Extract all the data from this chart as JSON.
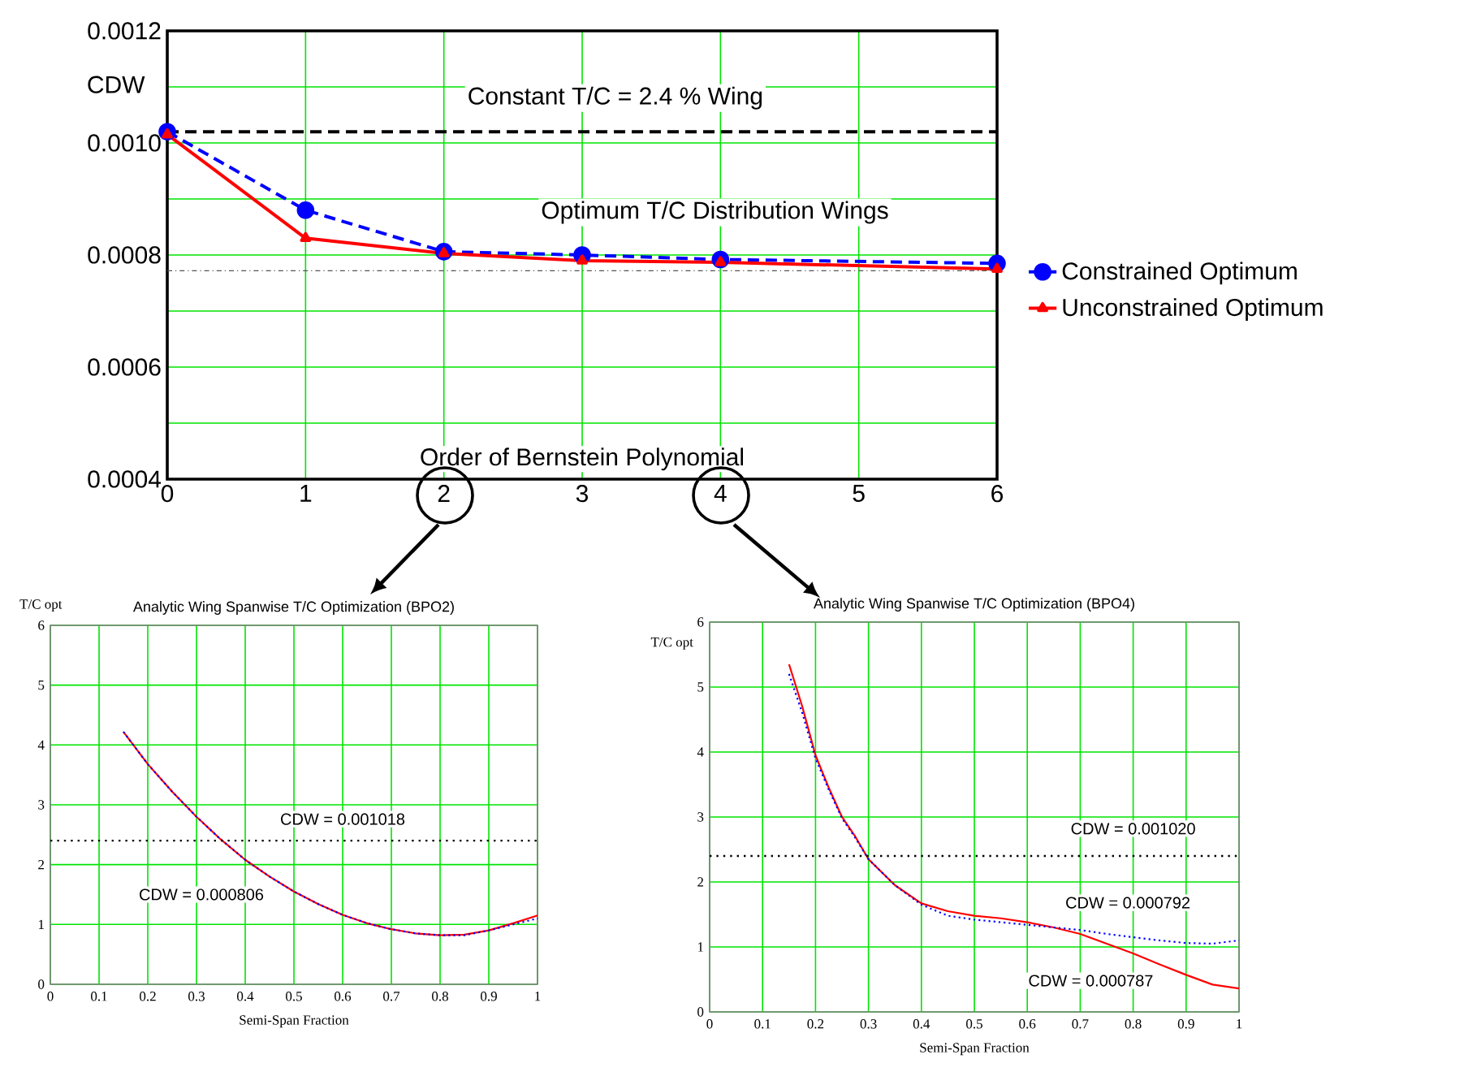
{
  "chart_data": [
    {
      "type": "line",
      "xlabel": "Order of Bernstein Polynomial",
      "ylabel": "CDW",
      "xlim": [
        0,
        6
      ],
      "xticks": [
        0,
        1,
        2,
        3,
        4,
        5,
        6
      ],
      "ylim": [
        0.0004,
        0.0012
      ],
      "yticks": [
        0.0004,
        {
          "value": 0.0005,
          "label": null
        },
        0.0006,
        {
          "value": 0.0007,
          "label": null
        },
        0.0008,
        {
          "value": 0.0009,
          "label": null
        },
        {
          "value": 0.001,
          "label": "0.0010"
        },
        {
          "value": 0.0011,
          "label": null
        },
        0.0012
      ],
      "grid": true,
      "legend": "right",
      "annotations": [
        "Constant T/C = 2.4 % Wing",
        "Optimum T/C Distribution Wings"
      ],
      "ref_lines": [
        {
          "axis": "y",
          "value": 0.00102,
          "color": "#000000",
          "line_style": "dashed"
        },
        {
          "axis": "y",
          "value": 0.000772,
          "color": "#555555",
          "line_style": "dashdot"
        }
      ],
      "series": [
        {
          "name": "Constrained Optimum",
          "color": "#0000ff",
          "line_style": "dashed",
          "marker": "circle",
          "x": [
            0,
            1,
            2,
            3,
            4,
            6
          ],
          "values": [
            0.00102,
            0.00088,
            0.000806,
            0.0008,
            0.000792,
            0.000785
          ]
        },
        {
          "name": "Unconstrained Optimum",
          "color": "#ff0000",
          "line_style": "solid",
          "marker": "triangle",
          "x": [
            0,
            1,
            2,
            3,
            4,
            6
          ],
          "values": [
            0.001015,
            0.00083,
            0.000803,
            0.00079,
            0.000787,
            0.000775
          ]
        }
      ]
    },
    {
      "type": "line",
      "title": "Analytic Wing Spanwise T/C Optimization (BPO2)",
      "xlabel": "Semi-Span Fraction",
      "ylabel": "T/C opt",
      "xlim": [
        0,
        1
      ],
      "xticks": [
        0,
        0.1,
        0.2,
        0.3,
        0.4,
        0.5,
        0.6,
        0.7,
        0.8,
        0.9,
        1
      ],
      "ylim": [
        0,
        6
      ],
      "yticks": [
        0,
        1,
        2,
        3,
        4,
        5,
        6
      ],
      "grid": true,
      "annotations": [
        "CDW = 0.001018",
        "CDW = 0.000806"
      ],
      "ref_lines": [
        {
          "axis": "y",
          "value": 2.4,
          "color": "#000000",
          "line_style": "dotted"
        }
      ],
      "series": [
        {
          "color": "#ff0000",
          "line_style": "solid",
          "x": [
            0.15,
            0.2,
            0.25,
            0.3,
            0.35,
            0.4,
            0.45,
            0.5,
            0.55,
            0.6,
            0.65,
            0.7,
            0.75,
            0.8,
            0.85,
            0.9,
            0.95,
            1.0
          ],
          "values": [
            4.22,
            3.68,
            3.22,
            2.8,
            2.42,
            2.08,
            1.8,
            1.55,
            1.34,
            1.16,
            1.02,
            0.92,
            0.85,
            0.82,
            0.83,
            0.9,
            1.02,
            1.15
          ]
        },
        {
          "color": "#0000ff",
          "line_style": "dotted",
          "x": [
            0.15,
            0.2,
            0.25,
            0.3,
            0.35,
            0.4,
            0.45,
            0.5,
            0.55,
            0.6,
            0.65,
            0.7,
            0.75,
            0.8,
            0.85,
            0.9,
            0.95,
            1.0
          ],
          "values": [
            4.22,
            3.68,
            3.22,
            2.8,
            2.42,
            2.08,
            1.8,
            1.55,
            1.34,
            1.16,
            1.02,
            0.92,
            0.85,
            0.82,
            0.82,
            0.9,
            1.0,
            1.1
          ]
        }
      ]
    },
    {
      "type": "line",
      "title": "Analytic Wing Spanwise T/C Optimization (BPO4)",
      "xlabel": "Semi-Span Fraction",
      "ylabel": "T/C opt",
      "xlim": [
        0,
        1
      ],
      "xticks": [
        0,
        0.1,
        0.2,
        0.3,
        0.4,
        0.5,
        0.6,
        0.7,
        0.8,
        0.9,
        1
      ],
      "ylim": [
        0,
        6
      ],
      "yticks": [
        0,
        1,
        2,
        3,
        4,
        5,
        6
      ],
      "grid": true,
      "annotations": [
        "CDW = 0.001020",
        "CDW = 0.000792",
        "CDW = 0.000787"
      ],
      "ref_lines": [
        {
          "axis": "y",
          "value": 2.4,
          "color": "#000000",
          "line_style": "dotted"
        }
      ],
      "series": [
        {
          "color": "#ff0000",
          "line_style": "solid",
          "x": [
            0.15,
            0.175,
            0.2,
            0.225,
            0.25,
            0.275,
            0.3,
            0.35,
            0.4,
            0.45,
            0.5,
            0.55,
            0.6,
            0.65,
            0.7,
            0.75,
            0.8,
            0.85,
            0.9,
            0.95,
            1.0
          ],
          "values": [
            5.35,
            4.7,
            3.95,
            3.45,
            3.0,
            2.7,
            2.35,
            1.95,
            1.67,
            1.55,
            1.48,
            1.44,
            1.38,
            1.3,
            1.2,
            1.05,
            0.9,
            0.73,
            0.57,
            0.42,
            0.36
          ]
        },
        {
          "color": "#0000ff",
          "line_style": "dotted",
          "x": [
            0.15,
            0.175,
            0.2,
            0.225,
            0.25,
            0.275,
            0.3,
            0.35,
            0.4,
            0.45,
            0.5,
            0.55,
            0.6,
            0.65,
            0.7,
            0.75,
            0.8,
            0.85,
            0.9,
            0.95,
            1.0
          ],
          "values": [
            5.2,
            4.6,
            3.9,
            3.42,
            2.98,
            2.68,
            2.35,
            1.95,
            1.65,
            1.48,
            1.42,
            1.38,
            1.34,
            1.3,
            1.26,
            1.2,
            1.15,
            1.1,
            1.06,
            1.05,
            1.1
          ]
        }
      ]
    }
  ]
}
